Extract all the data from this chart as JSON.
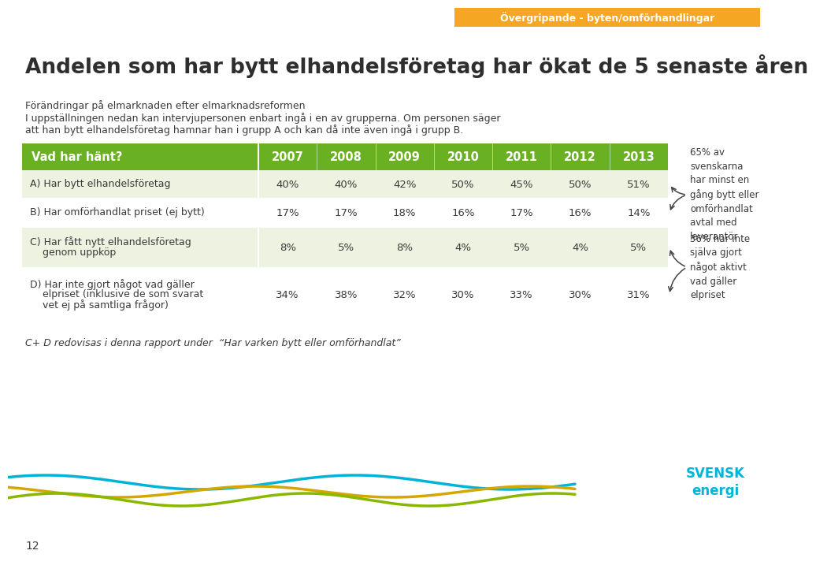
{
  "title": "Andelen som har bytt elhandelsföretag har ökat de 5 senaste åren",
  "header_tag": "Övergripande - byten/omförhandlingar",
  "intro_text_line1": "Förändringar på elmarknaden efter elmarknadsreformen",
  "intro_text_line2": "I uppställningen nedan kan intervjupersonen enbart ingå i en av grupperna. Om personen säger",
  "intro_text_line3": "att han bytt elhandelsföretag hamnar han i grupp A och kan då inte även ingå i grupp B.",
  "col_header": "Vad har hänt?",
  "years": [
    "2007",
    "2008",
    "2009",
    "2010",
    "2011",
    "2012",
    "2013"
  ],
  "rows": [
    {
      "label": [
        "A) Har bytt elhandelsföretag"
      ],
      "values": [
        "40%",
        "40%",
        "42%",
        "50%",
        "45%",
        "50%",
        "51%"
      ]
    },
    {
      "label": [
        "B) Har omförhandlat priset (ej bytt)"
      ],
      "values": [
        "17%",
        "17%",
        "18%",
        "16%",
        "17%",
        "16%",
        "14%"
      ]
    },
    {
      "label": [
        "C) Har fått nytt elhandelsföretag",
        "    genom uppköp"
      ],
      "values": [
        "8%",
        "5%",
        "8%",
        "4%",
        "5%",
        "4%",
        "5%"
      ]
    },
    {
      "label": [
        "D) Har inte gjort något vad gäller",
        "    elpriset (inklusive de som svarat",
        "    vet ej på samtliga frågor)"
      ],
      "values": [
        "34%",
        "38%",
        "32%",
        "30%",
        "33%",
        "30%",
        "31%"
      ]
    }
  ],
  "header_bg": "#6ab023",
  "row_bg_odd": "#edf3e0",
  "row_bg_even": "#ffffff",
  "header_text_color": "#ffffff",
  "data_text_color": "#3a3a3a",
  "tag_bg": "#f5a623",
  "tag_text_color": "#ffffff",
  "note_text": "C+ D redovisas i denna rapport under  “Har varken bytt eller omförhandlat”",
  "annotation_top": "65% av\nsvenskarna\nhar minst en\ngång bytt eller\nomförhandlat\navtal med\nleverantör",
  "annotation_bot": "36% har inte\nsjälva gjort\nnågot aktivt\nvad gäller\nelpriset",
  "page_number": "12",
  "bg_color": "#ffffff",
  "title_color": "#2e2e2e",
  "intro_color": "#3a3a3a",
  "note_color": "#3a3a3a",
  "wave_blue": "#00b4d8",
  "wave_yellow": "#d4a800",
  "wave_green": "#8ab800",
  "logo_color": "#00b4d8"
}
